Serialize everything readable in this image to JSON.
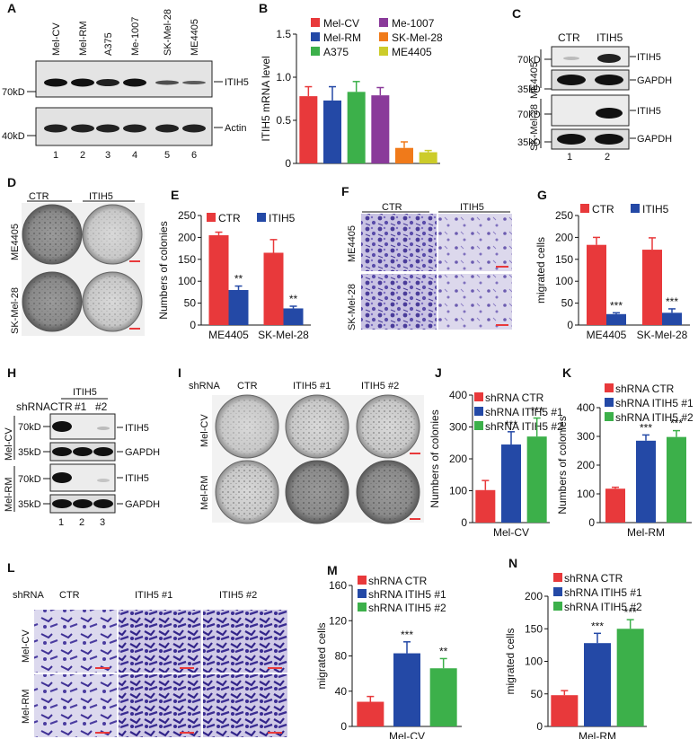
{
  "panels": {
    "A": {
      "label": "A",
      "lanes": [
        "Mel-CV",
        "Mel-RM",
        "A375",
        "Me-1007",
        "SK-Mel-28",
        "ME4405"
      ],
      "lane_numbers": [
        "1",
        "2",
        "3",
        "4",
        "5",
        "6"
      ],
      "blots": [
        {
          "mw": "70kD",
          "protein": "ITIH5"
        },
        {
          "mw": "40kD",
          "protein": "Actin"
        }
      ]
    },
    "B": {
      "label": "B",
      "legend": [
        "Mel-CV",
        "Me-1007",
        "Mel-RM",
        "SK-Mel-28",
        "A375",
        "ME4405"
      ]
    },
    "C": {
      "label": "C",
      "cols": [
        "CTR",
        "ITIH5"
      ],
      "cell_lines": [
        "ME4405",
        "SK-Mel-28"
      ],
      "blots": [
        {
          "mw": "70kD",
          "protein": "ITIH5"
        },
        {
          "mw": "35kD",
          "protein": "GAPDH"
        },
        {
          "mw": "70kD",
          "protein": "ITIH5"
        },
        {
          "mw": "35kD",
          "protein": "GAPDH"
        }
      ],
      "lane_numbers": [
        "1",
        "2"
      ]
    },
    "D": {
      "label": "D",
      "cols": [
        "CTR",
        "ITIH5"
      ],
      "rows": [
        "ME4405",
        "SK-Mel-28"
      ]
    },
    "E": {
      "label": "E",
      "legend": [
        "CTR",
        "ITIH5"
      ]
    },
    "F": {
      "label": "F",
      "cols": [
        "CTR",
        "ITIH5"
      ],
      "rows": [
        "ME4405",
        "SK-Mel-28"
      ]
    },
    "G": {
      "label": "G",
      "legend": [
        "CTR",
        "ITIH5"
      ]
    },
    "H": {
      "label": "H",
      "shrna": "shRNA",
      "group": "ITIH5",
      "cols": [
        "CTR",
        "#1",
        "#2"
      ],
      "cell_lines": [
        "Mel-CV",
        "Mel-RM"
      ],
      "blots": [
        {
          "mw": "70kD",
          "protein": "ITIH5"
        },
        {
          "mw": "35kD",
          "protein": "GAPDH"
        },
        {
          "mw": "70kD",
          "protein": "ITIH5"
        },
        {
          "mw": "35kD",
          "protein": "GAPDH"
        }
      ],
      "lane_numbers": [
        "1",
        "2",
        "3"
      ]
    },
    "I": {
      "label": "I",
      "shrna": "shRNA",
      "cols": [
        "CTR",
        "ITIH5 #1",
        "ITIH5  #2"
      ],
      "rows": [
        "Mel-CV",
        "Mel-RM"
      ]
    },
    "J": {
      "label": "J",
      "legend": [
        "shRNA CTR",
        "shRNA ITIH5 #1",
        "shRNA ITIH5 #2"
      ]
    },
    "K": {
      "label": "K",
      "legend": [
        "shRNA CTR",
        "shRNA ITIH5 #1",
        "shRNA ITIH5 #2"
      ]
    },
    "L": {
      "label": "L",
      "shrna": "shRNA",
      "cols": [
        "CTR",
        "ITIH5 #1",
        "ITIH5  #2"
      ],
      "rows": [
        "Mel-CV",
        "Mel-RM"
      ]
    },
    "M": {
      "label": "M",
      "legend": [
        "shRNA CTR",
        "shRNA ITIH5 #1",
        "shRNA ITIH5 #2"
      ]
    },
    "N": {
      "label": "N",
      "legend": [
        "shRNA CTR",
        "shRNA ITIH5 #1",
        "shRNA ITIH5 #2"
      ]
    }
  },
  "colors": {
    "red": "#e8393b",
    "blue": "#2449a6",
    "green": "#3cb04a",
    "purple": "#8a3a9a",
    "orange": "#f07a1a",
    "yellow": "#cccc2a",
    "stain": "#6b5bb0"
  },
  "chart_data": [
    {
      "id": "B",
      "type": "bar",
      "ylabel": "ITIH5 mRNA  level",
      "categories": [
        "Mel-CV",
        "Mel-RM",
        "A375",
        "Me-1007",
        "SK-Mel-28",
        "ME4405"
      ],
      "values": [
        0.78,
        0.73,
        0.83,
        0.79,
        0.18,
        0.13
      ],
      "errors": [
        0.11,
        0.16,
        0.12,
        0.09,
        0.07,
        0.02
      ],
      "colors": [
        "#e8393b",
        "#2449a6",
        "#3cb04a",
        "#8a3a9a",
        "#f07a1a",
        "#cccc2a"
      ],
      "ylim": [
        0,
        1.5
      ],
      "yticks": [
        "0",
        "0.5",
        "1.0",
        "1.5"
      ]
    },
    {
      "id": "E",
      "type": "bar",
      "ylabel": "Numbers of colonies",
      "categories": [
        "ME4405",
        "SK-Mel-28"
      ],
      "series": [
        {
          "name": "CTR",
          "values": [
            205,
            165
          ],
          "errors": [
            7,
            30
          ]
        },
        {
          "name": "ITIH5",
          "values": [
            80,
            38
          ],
          "errors": [
            9,
            5
          ]
        }
      ],
      "annotations": [
        "**",
        "**"
      ],
      "ylim": [
        0,
        250
      ],
      "yticks": [
        "0",
        "50",
        "100",
        "150",
        "200",
        "250"
      ]
    },
    {
      "id": "G",
      "type": "bar",
      "ylabel": "migrated cells",
      "categories": [
        "ME4405",
        "SK-Mel-28"
      ],
      "series": [
        {
          "name": "CTR",
          "values": [
            183,
            172
          ],
          "errors": [
            17,
            27
          ]
        },
        {
          "name": "ITIH5",
          "values": [
            25,
            28
          ],
          "errors": [
            3,
            9
          ]
        }
      ],
      "annotations": [
        "***",
        "***"
      ],
      "ylim": [
        0,
        250
      ],
      "yticks": [
        "0",
        "50",
        "100",
        "150",
        "200",
        "250"
      ]
    },
    {
      "id": "J",
      "type": "bar",
      "ylabel": "Numbers of colonies",
      "xlabel": "Mel-CV",
      "categories": [
        "shRNA CTR",
        "shRNA ITIH5 #1",
        "shRNA ITIH5 #2"
      ],
      "values": [
        102,
        245,
        270
      ],
      "errors": [
        30,
        40,
        58
      ],
      "colors": [
        "#e8393b",
        "#2449a6",
        "#3cb04a"
      ],
      "annotations": [
        "",
        "***",
        "***"
      ],
      "ylim": [
        0,
        400
      ],
      "yticks": [
        "0",
        "100",
        "200",
        "300",
        "400"
      ]
    },
    {
      "id": "K",
      "type": "bar",
      "ylabel": "Numbers of colonies",
      "xlabel": "Mel-RM",
      "categories": [
        "shRNA CTR",
        "shRNA ITIH5 #1",
        "shRNA ITIH5 #2"
      ],
      "values": [
        118,
        285,
        298
      ],
      "errors": [
        5,
        20,
        22
      ],
      "colors": [
        "#e8393b",
        "#2449a6",
        "#3cb04a"
      ],
      "annotations": [
        "",
        "***",
        "***"
      ],
      "ylim": [
        0,
        400
      ],
      "yticks": [
        "0",
        "100",
        "200",
        "300",
        "400"
      ]
    },
    {
      "id": "M",
      "type": "bar",
      "ylabel": "migrated cells",
      "xlabel": "Mel-CV",
      "categories": [
        "shRNA CTR",
        "shRNA ITIH5 #1",
        "shRNA ITIH5 #2"
      ],
      "values": [
        28,
        83,
        66
      ],
      "errors": [
        6,
        13,
        11
      ],
      "colors": [
        "#e8393b",
        "#2449a6",
        "#3cb04a"
      ],
      "annotations": [
        "",
        "***",
        "**"
      ],
      "ylim": [
        0,
        160
      ],
      "yticks": [
        "0",
        "40",
        "80",
        "120",
        "160"
      ]
    },
    {
      "id": "N",
      "type": "bar",
      "ylabel": "migrated cells",
      "xlabel": "Mel-RM",
      "categories": [
        "shRNA CTR",
        "shRNA ITIH5 #1",
        "shRNA ITIH5 #2"
      ],
      "values": [
        48,
        128,
        150
      ],
      "errors": [
        7,
        15,
        14
      ],
      "colors": [
        "#e8393b",
        "#2449a6",
        "#3cb04a"
      ],
      "annotations": [
        "",
        "***",
        "***"
      ],
      "ylim": [
        0,
        200
      ],
      "yticks": [
        "0",
        "50",
        "100",
        "150",
        "200"
      ]
    }
  ]
}
